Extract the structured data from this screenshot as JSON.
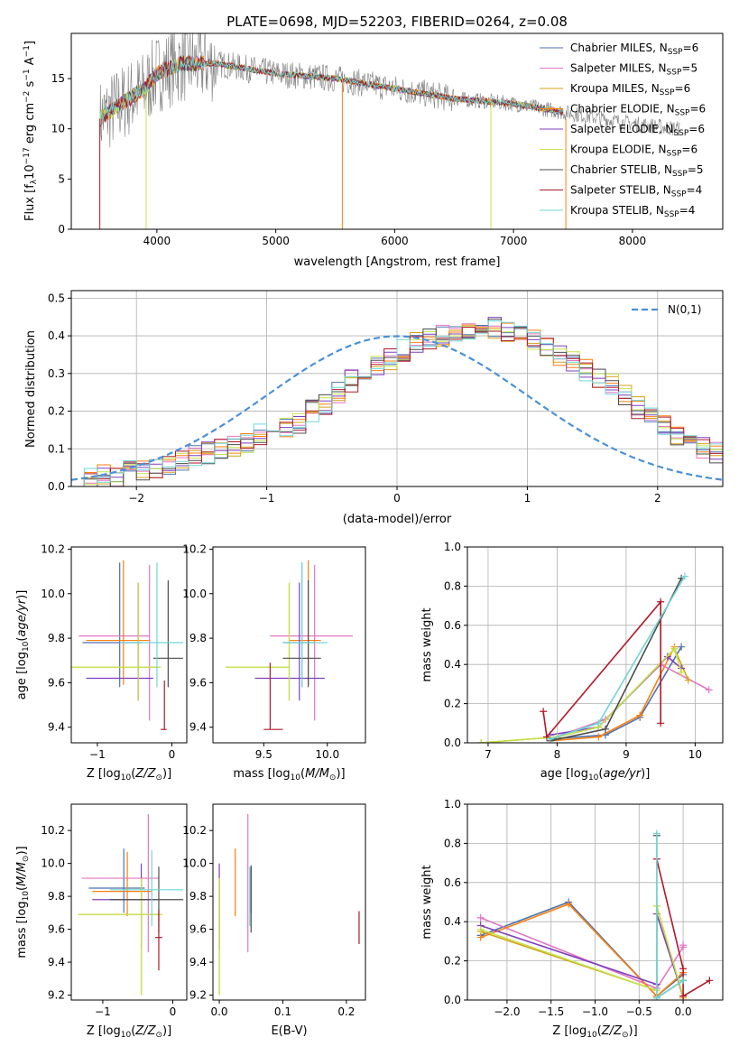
{
  "title": "PLATE=0698, MJD=52203, FIBERID=0264, z=0.08",
  "colors": {
    "Chabrier MILES": "#4c72b0",
    "Salpeter MILES": "#e377c2",
    "Kroupa MILES": "#d4a017",
    "Chabrier ELODIE": "#ff7f0e",
    "Salpeter ELODIE": "#7f3fbf",
    "Kroupa ELODIE": "#c5e34a",
    "Chabrier STELIB": "#4d4d4d",
    "Salpeter STELIB": "#b2182b",
    "Kroupa STELIB": "#6fd6d6",
    "data": "#808080",
    "gaussian": "#4a90d9"
  },
  "chart_data": [
    {
      "id": "spectrum",
      "type": "line",
      "title": "PLATE=0698, MJD=52203, FIBERID=0264, z=0.08",
      "xlabel": "wavelength [Angstrom, rest frame]",
      "ylabel": "Flux [f_λ 10^-17 erg cm^-2 s^-1 A^-1]",
      "xlim": [
        3280,
        8760
      ],
      "ylim": [
        0,
        19.5
      ],
      "xticks": [
        4000,
        5000,
        6000,
        7000,
        8000
      ],
      "yticks": [
        0,
        5,
        10,
        15
      ],
      "legend": "upper right",
      "legend_entries": [
        "Chabrier MILES, N_SSP=6",
        "Salpeter MILES, N_SSP=5",
        "Kroupa MILES, N_SSP=6",
        "Chabrier ELODIE, N_SSP=6",
        "Salpeter ELODIE, N_SSP=6",
        "Kroupa ELODIE, N_SSP=6",
        "Chabrier STELIB, N_SSP=5",
        "Salpeter STELIB, N_SSP=4",
        "Kroupa STELIB, N_SSP=4"
      ],
      "data_range": [
        3520,
        8400
      ],
      "continuum": [
        [
          3520,
          11
        ],
        [
          3700,
          12.5
        ],
        [
          3900,
          14
        ],
        [
          4000,
          15.5
        ],
        [
          4200,
          16.5
        ],
        [
          4500,
          16.5
        ],
        [
          5000,
          15.5
        ],
        [
          5500,
          15
        ],
        [
          6000,
          14
        ],
        [
          6500,
          13
        ],
        [
          7000,
          12.5
        ],
        [
          7500,
          11.5
        ],
        [
          8000,
          10.5
        ],
        [
          8400,
          10
        ]
      ]
    },
    {
      "id": "residuals",
      "type": "histogram",
      "xlabel": "(data-model)/error",
      "ylabel": "Normed distribution",
      "xlim": [
        -2.5,
        2.5
      ],
      "ylim": [
        0,
        0.52
      ],
      "xticks": [
        -2,
        -1,
        0,
        1,
        2
      ],
      "yticks": [
        0.0,
        0.1,
        0.2,
        0.3,
        0.4,
        0.5
      ],
      "legend_entry": "N(0,1)",
      "grid": true,
      "bin_width": 0.1,
      "bin_start": -2.5,
      "base_values": [
        0.02,
        0.02,
        0.03,
        0.03,
        0.04,
        0.04,
        0.05,
        0.06,
        0.07,
        0.08,
        0.09,
        0.1,
        0.11,
        0.12,
        0.14,
        0.15,
        0.16,
        0.17,
        0.2,
        0.22,
        0.25,
        0.28,
        0.3,
        0.32,
        0.34,
        0.36,
        0.38,
        0.39,
        0.4,
        0.41,
        0.42,
        0.42,
        0.42,
        0.41,
        0.4,
        0.39,
        0.37,
        0.35,
        0.33,
        0.31,
        0.29,
        0.27,
        0.24,
        0.21,
        0.19,
        0.16,
        0.14,
        0.12,
        0.1,
        0.09
      ]
    },
    {
      "id": "age_vs_Z",
      "type": "errorbar",
      "xlabel": "Z [log10(Z/Z⊙)]",
      "ylabel": "age [log10(age/yr)]",
      "xlim": [
        -1.35,
        0.2
      ],
      "ylim": [
        9.33,
        10.21
      ],
      "xticks": [
        -1,
        0
      ],
      "yticks": [
        9.4,
        9.6,
        9.8,
        10.0,
        10.2
      ],
      "points": [
        {
          "model": "Chabrier MILES",
          "x": -0.7,
          "y": 9.78,
          "xerr": [
            0.5,
            0.3
          ],
          "yerr": [
            0.2,
            0.36
          ]
        },
        {
          "model": "Salpeter MILES",
          "x": -0.3,
          "y": 9.81,
          "xerr": [
            0.95,
            0.0
          ],
          "yerr": [
            0.38,
            0.32
          ]
        },
        {
          "model": "Kroupa MILES",
          "x": -0.45,
          "y": 9.67,
          "xerr": [
            0.9,
            0.3
          ],
          "yerr": [
            0.15,
            0.38
          ]
        },
        {
          "model": "Chabrier ELODIE",
          "x": -0.65,
          "y": 9.79,
          "xerr": [
            0.5,
            0.35
          ],
          "yerr": [
            0.2,
            0.36
          ]
        },
        {
          "model": "Salpeter ELODIE",
          "x": -0.45,
          "y": 9.62,
          "xerr": [
            0.7,
            0.2
          ],
          "yerr": [
            0.1,
            0.43
          ]
        },
        {
          "model": "Kroupa ELODIE",
          "x": -0.45,
          "y": 9.67,
          "xerr": [
            0.9,
            0.3
          ],
          "yerr": [
            0.15,
            0.38
          ]
        },
        {
          "model": "Chabrier STELIB",
          "x": -0.05,
          "y": 9.71,
          "xerr": [
            0.2,
            0.2
          ],
          "yerr": [
            0.13,
            0.35
          ]
        },
        {
          "model": "Salpeter STELIB",
          "x": -0.1,
          "y": 9.39,
          "xerr": [
            0.05,
            0.03
          ],
          "yerr": [
            0.0,
            0.22
          ]
        },
        {
          "model": "Kroupa STELIB",
          "x": -0.2,
          "y": 9.78,
          "xerr": [
            0.5,
            0.35
          ],
          "yerr": [
            0.2,
            0.36
          ]
        }
      ]
    },
    {
      "id": "age_vs_mass",
      "type": "errorbar",
      "xlabel": "mass [log10(M/M⊙)]",
      "ylabel": "",
      "xlim": [
        9.1,
        10.3
      ],
      "ylim": [
        9.33,
        10.21
      ],
      "xticks": [
        9.5,
        10.0
      ],
      "yticks": [
        9.4,
        9.6,
        9.8,
        10.0,
        10.2
      ],
      "points": [
        {
          "model": "Chabrier MILES",
          "x": 9.8,
          "y": 9.78,
          "xerr": [
            0.15,
            0.1
          ],
          "yerr": [
            0.2,
            0.36
          ]
        },
        {
          "model": "Salpeter MILES",
          "x": 9.9,
          "y": 9.81,
          "xerr": [
            0.35,
            0.3
          ],
          "yerr": [
            0.38,
            0.32
          ]
        },
        {
          "model": "Kroupa MILES",
          "x": 9.7,
          "y": 9.67,
          "xerr": [
            0.5,
            0.0
          ],
          "yerr": [
            0.15,
            0.38
          ]
        },
        {
          "model": "Chabrier ELODIE",
          "x": 9.85,
          "y": 9.79,
          "xerr": [
            0.15,
            0.1
          ],
          "yerr": [
            0.2,
            0.36
          ]
        },
        {
          "model": "Salpeter ELODIE",
          "x": 9.78,
          "y": 9.62,
          "xerr": [
            0.35,
            0.2
          ],
          "yerr": [
            0.1,
            0.43
          ]
        },
        {
          "model": "Kroupa ELODIE",
          "x": 9.7,
          "y": 9.67,
          "xerr": [
            0.5,
            0.0
          ],
          "yerr": [
            0.15,
            0.38
          ]
        },
        {
          "model": "Chabrier STELIB",
          "x": 9.85,
          "y": 9.71,
          "xerr": [
            0.2,
            0.1
          ],
          "yerr": [
            0.13,
            0.35
          ]
        },
        {
          "model": "Salpeter STELIB",
          "x": 9.55,
          "y": 9.39,
          "xerr": [
            0.05,
            0.1
          ],
          "yerr": [
            0.0,
            0.3
          ]
        },
        {
          "model": "Kroupa STELIB",
          "x": 9.8,
          "y": 9.78,
          "xerr": [
            0.15,
            0.2
          ],
          "yerr": [
            0.2,
            0.36
          ]
        }
      ]
    },
    {
      "id": "weight_vs_age",
      "type": "line",
      "xlabel": "age [log10(age/yr)]",
      "ylabel": "mass weight",
      "xlim": [
        6.7,
        10.4
      ],
      "ylim": [
        0,
        1.0
      ],
      "xticks": [
        7,
        8,
        9,
        10
      ],
      "yticks": [
        0.0,
        0.2,
        0.4,
        0.6,
        0.8,
        1.0
      ],
      "grid": true,
      "series": [
        {
          "model": "Chabrier MILES",
          "x": [
            7.9,
            8.7,
            9.2,
            9.8
          ],
          "y": [
            0.02,
            0.04,
            0.13,
            0.49
          ]
        },
        {
          "model": "Salpeter MILES",
          "x": [
            7.9,
            8.7,
            9.5,
            10.2
          ],
          "y": [
            0.02,
            0.12,
            0.4,
            0.27
          ]
        },
        {
          "model": "Kroupa MILES",
          "x": [
            6.9,
            8.0,
            8.6,
            9.7,
            9.9
          ],
          "y": [
            0.0,
            0.03,
            0.08,
            0.48,
            0.32
          ]
        },
        {
          "model": "Chabrier ELODIE",
          "x": [
            7.9,
            8.6,
            9.2,
            9.7
          ],
          "y": [
            0.01,
            0.03,
            0.14,
            0.49
          ]
        },
        {
          "model": "Salpeter ELODIE",
          "x": [
            7.9,
            8.6,
            9.6,
            9.8
          ],
          "y": [
            0.04,
            0.08,
            0.44,
            0.38
          ]
        },
        {
          "model": "Kroupa ELODIE",
          "x": [
            6.9,
            8.0,
            8.6,
            9.7,
            9.8
          ],
          "y": [
            0.0,
            0.03,
            0.08,
            0.48,
            0.36
          ]
        },
        {
          "model": "Chabrier STELIB",
          "x": [
            7.9,
            8.7,
            9.8
          ],
          "y": [
            0.01,
            0.07,
            0.84
          ]
        },
        {
          "model": "Salpeter STELIB",
          "x": [
            7.8,
            7.85,
            9.5,
            9.5
          ],
          "y": [
            0.16,
            0.03,
            0.72,
            0.1
          ]
        },
        {
          "model": "Kroupa STELIB",
          "x": [
            7.9,
            8.6,
            9.85
          ],
          "y": [
            0.02,
            0.1,
            0.85
          ]
        }
      ]
    },
    {
      "id": "mass_vs_Z",
      "type": "errorbar",
      "xlabel": "Z [log10(Z/Z⊙)]",
      "ylabel": "mass [log10(M/M⊙)]",
      "xlim": [
        -1.45,
        0.2
      ],
      "ylim": [
        9.17,
        10.36
      ],
      "xticks": [
        -1,
        0
      ],
      "yticks": [
        9.2,
        9.4,
        9.6,
        9.8,
        10.0,
        10.2
      ],
      "points": [
        {
          "model": "Chabrier MILES",
          "x": -0.7,
          "y": 9.85,
          "xerr": [
            0.5,
            0.3
          ],
          "yerr": [
            0.15,
            0.24
          ]
        },
        {
          "model": "Salpeter MILES",
          "x": -0.35,
          "y": 9.91,
          "xerr": [
            0.95,
            0.15
          ],
          "yerr": [
            0.45,
            0.39
          ]
        },
        {
          "model": "Kroupa MILES",
          "x": -0.45,
          "y": 9.69,
          "xerr": [
            0.9,
            0.3
          ],
          "yerr": [
            0.49,
            0.22
          ]
        },
        {
          "model": "Chabrier ELODIE",
          "x": -0.65,
          "y": 9.83,
          "xerr": [
            0.5,
            0.35
          ],
          "yerr": [
            0.15,
            0.24
          ]
        },
        {
          "model": "Salpeter ELODIE",
          "x": -0.45,
          "y": 9.78,
          "xerr": [
            0.7,
            0.2
          ],
          "yerr": [
            0.3,
            0.22
          ]
        },
        {
          "model": "Kroupa ELODIE",
          "x": -0.45,
          "y": 9.69,
          "xerr": [
            0.9,
            0.3
          ],
          "yerr": [
            0.49,
            0.22
          ]
        },
        {
          "model": "Chabrier STELIB",
          "x": -0.2,
          "y": 9.78,
          "xerr": [
            0.7,
            0.35
          ],
          "yerr": [
            0.2,
            0.2
          ]
        },
        {
          "model": "Salpeter STELIB",
          "x": -0.2,
          "y": 9.55,
          "xerr": [
            0.05,
            0.05
          ],
          "yerr": [
            0.2,
            0.17
          ]
        },
        {
          "model": "Kroupa STELIB",
          "x": -0.3,
          "y": 9.84,
          "xerr": [
            0.6,
            0.45
          ],
          "yerr": [
            0.22,
            0.24
          ]
        }
      ]
    },
    {
      "id": "mass_vs_EBV",
      "type": "errorbar",
      "xlabel": "E(B-V)",
      "ylabel": "",
      "xlim": [
        -0.01,
        0.23
      ],
      "ylim": [
        9.17,
        10.36
      ],
      "xticks": [
        0.0,
        0.1,
        0.2
      ],
      "yticks": [
        9.2,
        9.4,
        9.6,
        9.8,
        10.0,
        10.2
      ],
      "points": [
        {
          "model": "Chabrier MILES",
          "x": 0.05,
          "y": 9.85,
          "xerr": [
            0,
            0
          ],
          "yerr": [
            0.15,
            0.14
          ]
        },
        {
          "model": "Salpeter MILES",
          "x": 0.045,
          "y": 9.91,
          "xerr": [
            0,
            0
          ],
          "yerr": [
            0.45,
            0.39
          ]
        },
        {
          "model": "Kroupa MILES",
          "x": 0.0,
          "y": 9.69,
          "xerr": [
            0,
            0
          ],
          "yerr": [
            0.49,
            0.22
          ]
        },
        {
          "model": "Chabrier ELODIE",
          "x": 0.025,
          "y": 9.83,
          "xerr": [
            0,
            0
          ],
          "yerr": [
            0.15,
            0.26
          ]
        },
        {
          "model": "Salpeter ELODIE",
          "x": 0.0,
          "y": 9.78,
          "xerr": [
            0,
            0
          ],
          "yerr": [
            0.3,
            0.22
          ]
        },
        {
          "model": "Kroupa ELODIE",
          "x": 0.0,
          "y": 9.69,
          "xerr": [
            0,
            0
          ],
          "yerr": [
            0.49,
            0.22
          ]
        },
        {
          "model": "Chabrier STELIB",
          "x": 0.05,
          "y": 9.78,
          "xerr": [
            0,
            0
          ],
          "yerr": [
            0.2,
            0.2
          ]
        },
        {
          "model": "Salpeter STELIB",
          "x": 0.22,
          "y": 9.61,
          "xerr": [
            0,
            0
          ],
          "yerr": [
            0.1,
            0.1
          ]
        },
        {
          "model": "Kroupa STELIB",
          "x": 0.048,
          "y": 9.84,
          "xerr": [
            0,
            0
          ],
          "yerr": [
            0.22,
            0.14
          ]
        }
      ]
    },
    {
      "id": "weight_vs_Z",
      "type": "line",
      "xlabel": "Z [log10(Z/Z⊙)]",
      "ylabel": "mass weight",
      "xlim": [
        -2.45,
        0.45
      ],
      "ylim": [
        0,
        1.0
      ],
      "xticks": [
        -2.0,
        -1.5,
        -1.0,
        -0.5,
        0.0
      ],
      "yticks": [
        0.0,
        0.2,
        0.4,
        0.6,
        0.8,
        1.0
      ],
      "grid": true,
      "series": [
        {
          "model": "Chabrier MILES",
          "x": [
            -2.3,
            -1.3,
            -0.3,
            0.0
          ],
          "y": [
            0.33,
            0.5,
            0.02,
            0.13
          ]
        },
        {
          "model": "Salpeter MILES",
          "x": [
            -2.3,
            -0.3,
            0.0,
            0.0
          ],
          "y": [
            0.42,
            0.06,
            0.27,
            0.28
          ]
        },
        {
          "model": "Kroupa MILES",
          "x": [
            -2.3,
            -0.3,
            -0.3,
            0.0
          ],
          "y": [
            0.35,
            0.05,
            0.48,
            0.01
          ]
        },
        {
          "model": "Chabrier ELODIE",
          "x": [
            -2.3,
            -1.3,
            -0.3,
            0.0
          ],
          "y": [
            0.32,
            0.49,
            0.02,
            0.14
          ]
        },
        {
          "model": "Salpeter ELODIE",
          "x": [
            -2.3,
            -0.3,
            -0.3,
            0.0
          ],
          "y": [
            0.38,
            0.08,
            0.44,
            0.02
          ]
        },
        {
          "model": "Kroupa ELODIE",
          "x": [
            -2.3,
            -0.3,
            -0.3,
            0.0
          ],
          "y": [
            0.36,
            0.05,
            0.48,
            0.02
          ]
        },
        {
          "model": "Chabrier STELIB",
          "x": [
            -0.3,
            -0.3,
            0.0
          ],
          "y": [
            0.84,
            0.01,
            0.1
          ]
        },
        {
          "model": "Salpeter STELIB",
          "x": [
            -0.3,
            0.0,
            0.0,
            0.3
          ],
          "y": [
            0.72,
            0.16,
            0.02,
            0.1
          ]
        },
        {
          "model": "Kroupa STELIB",
          "x": [
            -0.3,
            -0.3,
            0.0
          ],
          "y": [
            0.85,
            0.01,
            0.1
          ]
        }
      ]
    }
  ]
}
